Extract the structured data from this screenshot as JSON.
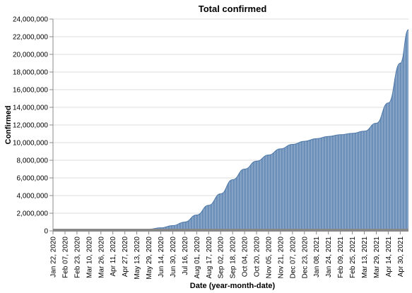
{
  "chart_data": {
    "type": "area",
    "title": "Total confirmed",
    "xlabel": "Date (year-month-date)",
    "ylabel": "Confirmed",
    "ylim": [
      0,
      24000000
    ],
    "grid": true,
    "y_ticks": [
      0,
      2000000,
      4000000,
      6000000,
      8000000,
      10000000,
      12000000,
      14000000,
      16000000,
      18000000,
      20000000,
      22000000,
      24000000
    ],
    "y_tick_labels": [
      "0",
      "2,000,000",
      "4,000,000",
      "6,000,000",
      "8,000,000",
      "10,000,000",
      "12,000,000",
      "14,000,000",
      "16,000,000",
      "18,000,000",
      "20,000,000",
      "22,000,000",
      "24,000,000"
    ],
    "x_tick_labels": [
      "Jan 22, 2020",
      "Feb 07, 2020",
      "Feb 23, 2020",
      "Mar 10, 2020",
      "Mar 26, 2020",
      "Apr 11, 2020",
      "Apr 27, 2020",
      "May 13, 2020",
      "May 29, 2020",
      "Jun 14, 2020",
      "Jun 30, 2020",
      "Jul 16, 2020",
      "Aug 01, 2020",
      "Aug 17, 2020",
      "Sep 02, 2020",
      "Sep 18, 2020",
      "Oct 04, 2020",
      "Oct 20, 2020",
      "Nov 05, 2020",
      "Nov 21, 2020",
      "Dec 07, 2020",
      "Dec 23, 2020",
      "Jan 08, 2021",
      "Jan 24, 2021",
      "Feb 09, 2021",
      "Feb 25, 2021",
      "Mar 13, 2021",
      "Mar 29, 2021",
      "Apr 14, 2021",
      "Apr 30, 2021"
    ],
    "x": [
      "2020-01-22",
      "2020-02-07",
      "2020-02-23",
      "2020-03-10",
      "2020-03-26",
      "2020-04-11",
      "2020-04-27",
      "2020-05-13",
      "2020-05-29",
      "2020-06-14",
      "2020-06-30",
      "2020-07-16",
      "2020-08-01",
      "2020-08-17",
      "2020-09-02",
      "2020-09-18",
      "2020-10-04",
      "2020-10-20",
      "2020-11-05",
      "2020-11-21",
      "2020-12-07",
      "2020-12-23",
      "2021-01-08",
      "2021-01-24",
      "2021-02-09",
      "2021-02-25",
      "2021-03-13",
      "2021-03-29",
      "2021-04-14",
      "2021-04-30",
      "2021-05-11"
    ],
    "series": [
      {
        "values": [
          0,
          0,
          10,
          5000,
          20000,
          35000,
          60000,
          120000,
          200000,
          350000,
          600000,
          1000000,
          1800000,
          2900000,
          4200000,
          5800000,
          7000000,
          7900000,
          8600000,
          9300000,
          9800000,
          10150000,
          10450000,
          10700000,
          10900000,
          11050000,
          11300000,
          12200000,
          14500000,
          19000000,
          22800000
        ]
      }
    ],
    "colors": {
      "area_fill": "#6b8fb8",
      "area_stroke": "#4c78a8",
      "baseline": "#888888"
    }
  }
}
